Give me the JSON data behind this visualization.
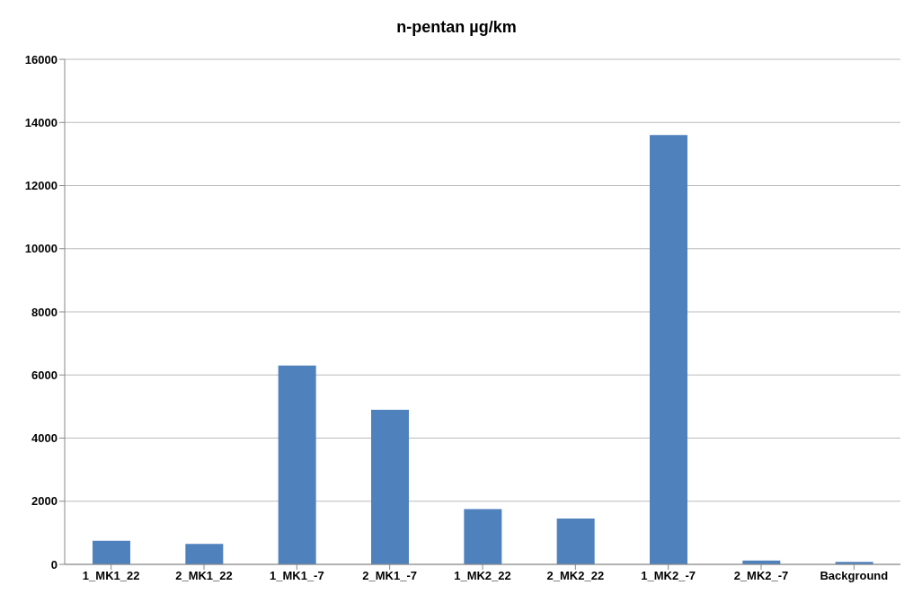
{
  "chart_data": {
    "type": "bar",
    "title": "n-pentan µg/km",
    "categories": [
      "1_MK1_22",
      "2_MK1_22",
      "1_MK1_-7",
      "2_MK1_-7",
      "1_MK2_22",
      "2_MK2_22",
      "1_MK2_-7",
      "2_MK2_-7",
      "Background"
    ],
    "values": [
      750,
      650,
      6300,
      4900,
      1750,
      1450,
      13600,
      120,
      80
    ],
    "color": "#4f81bd",
    "ylim": [
      0,
      16000
    ],
    "yticks": [
      0,
      2000,
      4000,
      6000,
      8000,
      10000,
      12000,
      14000,
      16000
    ],
    "grid": "y"
  }
}
